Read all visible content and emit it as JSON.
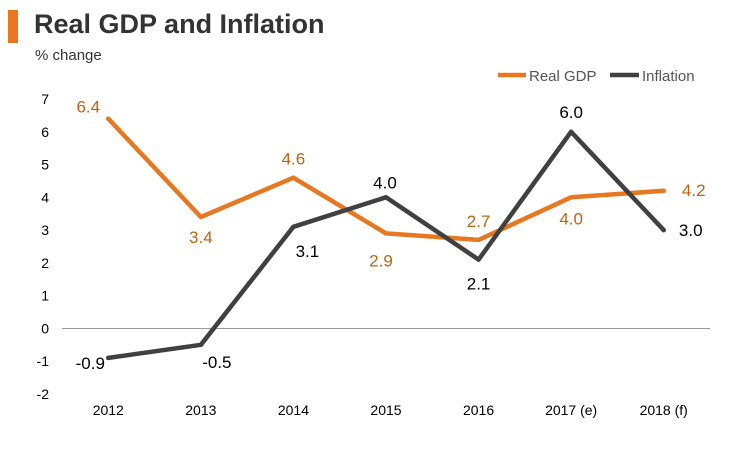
{
  "title": "Real GDP and Inflation",
  "subtitle": "% change",
  "colors": {
    "accent": "#e87722",
    "real_gdp": "#e87722",
    "inflation": "#404040",
    "axis": "#999999"
  },
  "chart_data": {
    "type": "line",
    "title": "Real GDP and Inflation",
    "ylabel": "% change",
    "xlabel": "",
    "categories": [
      "2012",
      "2013",
      "2014",
      "2015",
      "2016",
      "2017 (e)",
      "2018 (f)"
    ],
    "yticks": [
      7,
      6,
      5,
      4,
      3,
      2,
      1,
      0,
      -1,
      -2
    ],
    "ylim": [
      -2,
      7
    ],
    "legend_position": "top-right",
    "series": [
      {
        "name": "Real GDP",
        "color": "#e87722",
        "label_color": "#c0630f",
        "values": [
          6.4,
          3.4,
          4.6,
          2.9,
          2.7,
          4.0,
          4.2
        ],
        "labels": [
          "6.4",
          "3.4",
          "4.6",
          "2.9",
          "2.7",
          "4.0",
          "4.2"
        ]
      },
      {
        "name": "Inflation",
        "color": "#404040",
        "label_color": "#000000",
        "values": [
          -0.9,
          -0.5,
          3.1,
          4.0,
          2.1,
          6.0,
          3.0
        ],
        "labels": [
          "-0.9",
          "-0.5",
          "3.1",
          "4.0",
          "2.1",
          "6.0",
          "3.0"
        ]
      }
    ]
  }
}
